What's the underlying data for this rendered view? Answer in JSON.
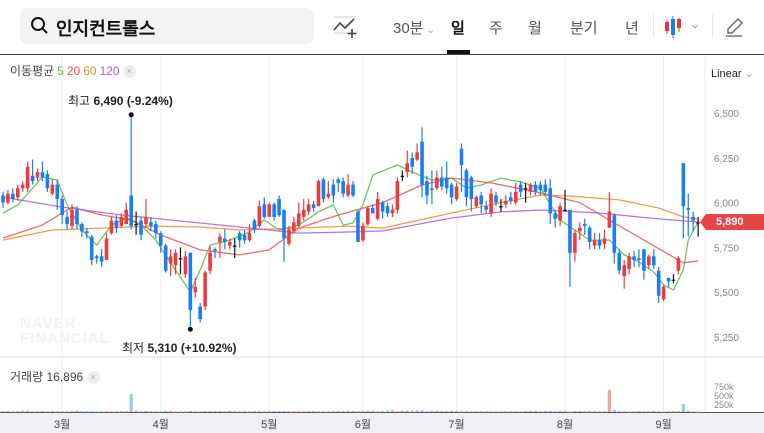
{
  "search": {
    "query": "인지컨트롤스"
  },
  "toolbar": {
    "interval": "30분",
    "periods": [
      "일",
      "주",
      "월",
      "분기",
      "년"
    ],
    "active_period": "일"
  },
  "legend": {
    "label": "이동평균",
    "ma": [
      {
        "period": "5",
        "color": "#5bb73e"
      },
      {
        "period": "20",
        "color": "#ee4f4f"
      },
      {
        "period": "60",
        "color": "#f58a22"
      },
      {
        "period": "120",
        "color": "#a55fd6"
      }
    ],
    "close": "×"
  },
  "scale_mode": "Linear",
  "annotations": {
    "high_label": "최고",
    "high_value": "6,490",
    "high_change": "(-9.24%)",
    "low_label": "최저",
    "low_value": "5,310",
    "low_change": "(+10.92%)"
  },
  "watermark": "NAVER FINANCIAL",
  "current_price": "5,890",
  "volume": {
    "label": "거래량",
    "value": "16,896",
    "close": "×"
  },
  "colors": {
    "up": "#ee3b3b",
    "down": "#1a7ef0",
    "flat": "#111111",
    "tag": "#e94446"
  },
  "chart_data": {
    "type": "candlestick",
    "x_tick_labels": [
      "3월",
      "4월",
      "5월",
      "6월",
      "7월",
      "8월",
      "9월"
    ],
    "x_tick_index": [
      12,
      32,
      54,
      73,
      92,
      114,
      134
    ],
    "y_ticks": [
      6500,
      6250,
      6000,
      5750,
      5500,
      5250
    ],
    "y_tick_labels": [
      "6,500",
      "6,250",
      "6,000",
      "5,750",
      "5,500",
      "5,250"
    ],
    "ylim": [
      5150,
      6700
    ],
    "candles_ohlc": [
      [
        6040,
        6060,
        5970,
        6000
      ],
      [
        6000,
        6070,
        5990,
        6050
      ],
      [
        6050,
        6080,
        6000,
        6020
      ],
      [
        6030,
        6100,
        6010,
        6080
      ],
      [
        6080,
        6120,
        6060,
        6100
      ],
      [
        6080,
        6230,
        6060,
        6200
      ],
      [
        6150,
        6240,
        6100,
        6120
      ],
      [
        6140,
        6190,
        6120,
        6170
      ],
      [
        6170,
        6230,
        6120,
        6140
      ],
      [
        6160,
        6180,
        6060,
        6080
      ],
      [
        6050,
        6130,
        6040,
        6100
      ],
      [
        6100,
        6130,
        5960,
        6020
      ],
      [
        6020,
        6040,
        5880,
        5930
      ],
      [
        5920,
        5950,
        5850,
        5880
      ],
      [
        5870,
        5990,
        5850,
        5960
      ],
      [
        5960,
        5980,
        5850,
        5880
      ],
      [
        5880,
        5890,
        5810,
        5840
      ],
      [
        5840,
        5860,
        5800,
        5830
      ],
      [
        5810,
        5820,
        5650,
        5680
      ],
      [
        5700,
        5710,
        5660,
        5690
      ],
      [
        5700,
        5740,
        5640,
        5670
      ],
      [
        5680,
        5830,
        5680,
        5800
      ],
      [
        5830,
        5920,
        5820,
        5900
      ],
      [
        5900,
        5930,
        5830,
        5860
      ],
      [
        5870,
        5940,
        5860,
        5920
      ],
      [
        5880,
        6000,
        5880,
        5960
      ],
      [
        6040,
        6490,
        5850,
        5870
      ],
      [
        5880,
        5950,
        5820,
        5880
      ],
      [
        5900,
        5920,
        5790,
        5820
      ],
      [
        5880,
        6020,
        5860,
        5920
      ],
      [
        5890,
        5920,
        5840,
        5870
      ],
      [
        5880,
        5900,
        5800,
        5830
      ],
      [
        5830,
        5840,
        5720,
        5760
      ],
      [
        5760,
        5770,
        5610,
        5620
      ],
      [
        5660,
        5740,
        5590,
        5700
      ],
      [
        5650,
        5740,
        5600,
        5720
      ],
      [
        5690,
        5750,
        5600,
        5690
      ],
      [
        5600,
        5730,
        5580,
        5700
      ],
      [
        5720,
        5720,
        5310,
        5400
      ],
      [
        5500,
        5580,
        5470,
        5530
      ],
      [
        5420,
        5440,
        5330,
        5350
      ],
      [
        5420,
        5620,
        5400,
        5610
      ],
      [
        5620,
        5760,
        5600,
        5720
      ],
      [
        5740,
        5750,
        5690,
        5730
      ],
      [
        5780,
        5830,
        5690,
        5810
      ],
      [
        5800,
        5850,
        5740,
        5780
      ],
      [
        5760,
        5800,
        5740,
        5780
      ],
      [
        5760,
        5800,
        5690,
        5760
      ],
      [
        5830,
        5840,
        5750,
        5790
      ],
      [
        5820,
        5850,
        5770,
        5790
      ],
      [
        5790,
        5880,
        5780,
        5830
      ],
      [
        5900,
        5910,
        5830,
        5850
      ],
      [
        5870,
        6010,
        5860,
        5980
      ],
      [
        5990,
        6030,
        5910,
        5920
      ],
      [
        5920,
        6000,
        5920,
        5990
      ],
      [
        5990,
        6000,
        5900,
        5920
      ],
      [
        6020,
        6040,
        5920,
        5930
      ],
      [
        5960,
        5960,
        5670,
        5800
      ],
      [
        5770,
        5870,
        5760,
        5850
      ],
      [
        5840,
        5920,
        5830,
        5890
      ],
      [
        5870,
        6000,
        5860,
        5940
      ],
      [
        5920,
        6020,
        5900,
        5960
      ],
      [
        5950,
        6020,
        5930,
        5990
      ],
      [
        5990,
        6010,
        5950,
        5970
      ],
      [
        5980,
        6130,
        5980,
        6120
      ],
      [
        6130,
        6140,
        6000,
        6020
      ],
      [
        6030,
        6120,
        6020,
        6050
      ],
      [
        6100,
        6130,
        6000,
        6040
      ],
      [
        6130,
        6140,
        6060,
        6110
      ],
      [
        6120,
        6140,
        6030,
        6050
      ],
      [
        6040,
        6160,
        6030,
        6100
      ],
      [
        6100,
        6120,
        6030,
        6040
      ],
      [
        5950,
        5960,
        5780,
        5780
      ],
      [
        5790,
        5890,
        5780,
        5870
      ],
      [
        5880,
        5980,
        5870,
        5970
      ],
      [
        5970,
        5990,
        5940,
        5940
      ],
      [
        5910,
        6060,
        5900,
        6020
      ],
      [
        6000,
        6010,
        5910,
        5950
      ],
      [
        5980,
        6000,
        5920,
        5940
      ],
      [
        5940,
        5990,
        5920,
        5960
      ],
      [
        5960,
        6140,
        5940,
        6120
      ],
      [
        6150,
        6180,
        6120,
        6150
      ],
      [
        6170,
        6290,
        6140,
        6220
      ],
      [
        6250,
        6280,
        6160,
        6200
      ],
      [
        6240,
        6330,
        6230,
        6280
      ],
      [
        6340,
        6420,
        6030,
        6100
      ],
      [
        6120,
        6150,
        5990,
        6040
      ],
      [
        6080,
        6180,
        5990,
        6070
      ],
      [
        6080,
        6180,
        6070,
        6140
      ],
      [
        6140,
        6200,
        6070,
        6090
      ],
      [
        6140,
        6230,
        6050,
        6080
      ],
      [
        6100,
        6110,
        5990,
        6030
      ],
      [
        6020,
        6110,
        6010,
        6090
      ],
      [
        6300,
        6330,
        6060,
        6210
      ],
      [
        6180,
        6190,
        5980,
        6030
      ],
      [
        6140,
        6150,
        5950,
        6020
      ],
      [
        5980,
        6040,
        5970,
        6030
      ],
      [
        6040,
        6060,
        5940,
        5990
      ],
      [
        5980,
        6010,
        5940,
        5960
      ],
      [
        5940,
        6080,
        5920,
        6050
      ],
      [
        6040,
        6060,
        5980,
        6000
      ],
      [
        5980,
        6020,
        5950,
        5980
      ],
      [
        5990,
        6040,
        5970,
        6010
      ],
      [
        6030,
        6060,
        5990,
        6010
      ],
      [
        6000,
        6110,
        5990,
        6060
      ],
      [
        6100,
        6120,
        6030,
        6060
      ],
      [
        6080,
        6110,
        6000,
        6080
      ],
      [
        6060,
        6110,
        6040,
        6100
      ],
      [
        6100,
        6120,
        6040,
        6060
      ],
      [
        6100,
        6120,
        6040,
        6070
      ],
      [
        6100,
        6130,
        6040,
        6060
      ],
      [
        6080,
        6130,
        5880,
        5940
      ],
      [
        5940,
        5960,
        5860,
        5910
      ],
      [
        5900,
        6000,
        5870,
        5980
      ],
      [
        5960,
        6070,
        5950,
        5960
      ],
      [
        5960,
        5960,
        5530,
        5720
      ],
      [
        5720,
        5850,
        5670,
        5830
      ],
      [
        5840,
        5890,
        5790,
        5860
      ],
      [
        5880,
        5910,
        5820,
        5870
      ],
      [
        5860,
        5870,
        5740,
        5780
      ],
      [
        5760,
        5830,
        5740,
        5790
      ],
      [
        5790,
        5830,
        5740,
        5760
      ],
      [
        5770,
        5850,
        5740,
        5800
      ],
      [
        5860,
        6060,
        5860,
        5950
      ],
      [
        5930,
        5940,
        5660,
        5720
      ],
      [
        5720,
        5740,
        5600,
        5620
      ],
      [
        5590,
        5680,
        5520,
        5650
      ],
      [
        5630,
        5720,
        5600,
        5700
      ],
      [
        5700,
        5730,
        5640,
        5680
      ],
      [
        5690,
        5740,
        5640,
        5680
      ],
      [
        5740,
        5740,
        5570,
        5620
      ],
      [
        5650,
        5710,
        5630,
        5700
      ],
      [
        5700,
        5740,
        5630,
        5650
      ],
      [
        5620,
        5640,
        5440,
        5480
      ],
      [
        5460,
        5540,
        5450,
        5530
      ],
      [
        5580,
        5580,
        5530,
        5560
      ],
      [
        5570,
        5600,
        5550,
        5570
      ],
      [
        5620,
        5700,
        5600,
        5690
      ],
      [
        6220,
        6220,
        5800,
        5980
      ],
      [
        5970,
        6050,
        5810,
        5960
      ],
      [
        5920,
        5950,
        5840,
        5900
      ],
      [
        5890,
        5920,
        5810,
        5890
      ]
    ],
    "ma": [
      {
        "period": 5,
        "color": "#5bb73e",
        "points": [
          [
            0,
            5942
          ],
          [
            3,
            5987
          ],
          [
            8,
            6143
          ],
          [
            11,
            6126
          ],
          [
            13,
            5987
          ],
          [
            16,
            5847
          ],
          [
            19,
            5763
          ],
          [
            22,
            5875
          ],
          [
            25,
            5914
          ],
          [
            28,
            5875
          ],
          [
            31,
            5791
          ],
          [
            35,
            5624
          ],
          [
            38,
            5501
          ],
          [
            40,
            5624
          ],
          [
            42,
            5763
          ],
          [
            46,
            5791
          ],
          [
            50,
            5836
          ],
          [
            53,
            5903
          ],
          [
            56,
            5847
          ],
          [
            60,
            5875
          ],
          [
            64,
            5948
          ],
          [
            67,
            5987
          ],
          [
            69,
            5875
          ],
          [
            71,
            5886
          ],
          [
            73,
            5987
          ],
          [
            75,
            6154
          ],
          [
            80,
            6210
          ],
          [
            83,
            6171
          ],
          [
            87,
            6126
          ],
          [
            91,
            6137
          ],
          [
            94,
            6081
          ],
          [
            97,
            6098
          ],
          [
            101,
            6137
          ],
          [
            105,
            6115
          ],
          [
            109,
            6081
          ],
          [
            113,
            5903
          ],
          [
            116,
            5847
          ],
          [
            119,
            5791
          ],
          [
            123,
            5791
          ],
          [
            126,
            5708
          ],
          [
            129,
            5669
          ],
          [
            132,
            5613
          ],
          [
            134,
            5540
          ],
          [
            136,
            5512
          ],
          [
            138,
            5624
          ],
          [
            139,
            5791
          ],
          [
            141,
            5892
          ]
        ]
      },
      {
        "period": 20,
        "color": "#ee4f4f",
        "points": [
          [
            0,
            5802
          ],
          [
            8,
            5875
          ],
          [
            14,
            5975
          ],
          [
            20,
            5931
          ],
          [
            26,
            5903
          ],
          [
            32,
            5819
          ],
          [
            40,
            5736
          ],
          [
            48,
            5708
          ],
          [
            54,
            5736
          ],
          [
            60,
            5858
          ],
          [
            68,
            5931
          ],
          [
            77,
            6000
          ],
          [
            85,
            6098
          ],
          [
            91,
            6137
          ],
          [
            99,
            6110
          ],
          [
            109,
            6054
          ],
          [
            117,
            6000
          ],
          [
            124,
            5886
          ],
          [
            131,
            5775
          ],
          [
            138,
            5664
          ],
          [
            141,
            5674
          ]
        ]
      },
      {
        "period": 60,
        "color": "#f58a22",
        "points": [
          [
            0,
            5791
          ],
          [
            10,
            5847
          ],
          [
            20,
            5858
          ],
          [
            30,
            5869
          ],
          [
            40,
            5864
          ],
          [
            48,
            5847
          ],
          [
            60,
            5858
          ],
          [
            70,
            5869
          ],
          [
            77,
            5858
          ],
          [
            91,
            5942
          ],
          [
            101,
            6000
          ],
          [
            109,
            6042
          ],
          [
            115,
            6037
          ],
          [
            125,
            6015
          ],
          [
            133,
            5970
          ],
          [
            138,
            5920
          ],
          [
            141,
            5908
          ]
        ]
      },
      {
        "period": 120,
        "color": "#a55fd6",
        "points": [
          [
            0,
            6031
          ],
          [
            12,
            5975
          ],
          [
            24,
            5931
          ],
          [
            34,
            5903
          ],
          [
            48,
            5864
          ],
          [
            60,
            5830
          ],
          [
            70,
            5836
          ],
          [
            77,
            5842
          ],
          [
            91,
            5914
          ],
          [
            101,
            5948
          ],
          [
            109,
            5959
          ],
          [
            121,
            5942
          ],
          [
            131,
            5914
          ],
          [
            141,
            5892
          ]
        ]
      }
    ],
    "volume_ticks": [
      "750k",
      "500k",
      "250k"
    ],
    "volume": [
      30000,
      30000,
      25000,
      30000,
      40000,
      40000,
      25000,
      25000,
      30000,
      25000,
      30000,
      25000,
      25000,
      25000,
      30000,
      40000,
      25000,
      25000,
      25000,
      25000,
      25000,
      25000,
      25000,
      25000,
      25000,
      25000,
      530000,
      40000,
      25000,
      35000,
      25000,
      25000,
      25000,
      30000,
      25000,
      20000,
      20000,
      20000,
      30000,
      25000,
      25000,
      30000,
      30000,
      30000,
      30000,
      25000,
      40000,
      25000,
      25000,
      30000,
      25000,
      30000,
      30000,
      25000,
      25000,
      30000,
      30000,
      30000,
      25000,
      25000,
      25000,
      25000,
      30000,
      30000,
      25000,
      25000,
      25000,
      25000,
      40000,
      30000,
      35000,
      35000,
      25000,
      30000,
      35000,
      40000,
      25000,
      30000,
      45000,
      55000,
      30000,
      40000,
      45000,
      45000,
      50000,
      55000,
      30000,
      40000,
      40000,
      30000,
      30000,
      35000,
      30000,
      25000,
      25000,
      25000,
      25000,
      25000,
      25000,
      25000,
      25000,
      25000,
      25000,
      25000,
      25000,
      25000,
      30000,
      30000,
      35000,
      25000,
      30000,
      35000,
      25000,
      35000,
      30000,
      20000,
      30000,
      30000,
      25000,
      25000,
      25000,
      25000,
      25000,
      650000,
      60000,
      30000,
      25000,
      20000,
      25000,
      30000,
      25000,
      25000,
      35000,
      25000,
      20000,
      25000,
      25000,
      25000,
      230000,
      40000,
      25000,
      16896
    ]
  }
}
